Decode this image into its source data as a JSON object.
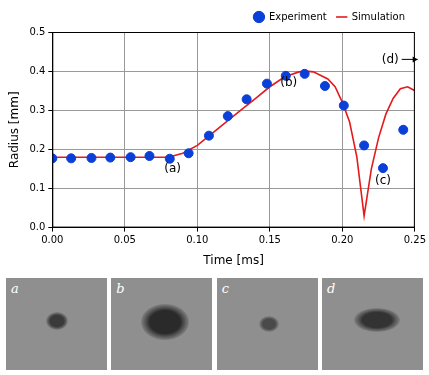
{
  "chart_data": {
    "type": "scatter",
    "x_label": "Time [ms]",
    "y_label": "Radius [mm]",
    "xlim": [
      0,
      0.25
    ],
    "xticks": [
      {
        "value": 0,
        "label": "0.00"
      },
      {
        "value": 0.05,
        "label": "0.05"
      },
      {
        "value": 0.1,
        "label": "0.10"
      },
      {
        "value": 0.15,
        "label": "0.15"
      },
      {
        "value": 0.2,
        "label": "0.20"
      },
      {
        "value": 0.25,
        "label": "0.25"
      }
    ],
    "ylim": [
      0,
      0.5
    ],
    "yticks": [
      {
        "value": 0,
        "label": "0.0"
      },
      {
        "value": 0.1,
        "label": "0.1"
      },
      {
        "value": 0.2,
        "label": "0.2"
      },
      {
        "value": 0.3,
        "label": "0.3"
      },
      {
        "value": 0.4,
        "label": "0.4"
      },
      {
        "value": 0.5,
        "label": "0.5"
      }
    ],
    "grid": true,
    "legend": "upper right",
    "series": [
      {
        "name": "Simulation",
        "type": "line",
        "color": "#e41a1c",
        "line_style": "solid",
        "x": [
          0,
          0.02,
          0.04,
          0.06,
          0.08,
          0.09,
          0.1,
          0.11,
          0.12,
          0.13,
          0.14,
          0.15,
          0.16,
          0.17,
          0.175,
          0.18,
          0.19,
          0.195,
          0.2,
          0.205,
          0.21,
          0.215,
          0.22,
          0.225,
          0.23,
          0.235,
          0.24,
          0.245,
          0.25
        ],
        "values": [
          0.18,
          0.18,
          0.18,
          0.18,
          0.18,
          0.19,
          0.21,
          0.24,
          0.27,
          0.3,
          0.33,
          0.36,
          0.385,
          0.398,
          0.4,
          0.398,
          0.38,
          0.36,
          0.32,
          0.27,
          0.18,
          0.03,
          0.15,
          0.23,
          0.29,
          0.33,
          0.355,
          0.36,
          0.35
        ]
      },
      {
        "name": "Experiment",
        "type": "scatter",
        "color": "#0a3fd8",
        "marker": "circle",
        "x": [
          0,
          0.013,
          0.027,
          0.04,
          0.054,
          0.067,
          0.081,
          0.094,
          0.108,
          0.121,
          0.134,
          0.148,
          0.161,
          0.174,
          0.188,
          0.201,
          0.215,
          0.228,
          0.242
        ],
        "values": [
          0.177,
          0.177,
          0.178,
          0.179,
          0.18,
          0.183,
          0.176,
          0.19,
          0.235,
          0.285,
          0.328,
          0.368,
          0.388,
          0.393,
          0.362,
          0.312,
          0.21,
          0.152,
          0.25
        ]
      }
    ],
    "annotations": [
      {
        "text": "(a)",
        "x": 0.083,
        "y": 0.15
      },
      {
        "text": "(b)",
        "x": 0.163,
        "y": 0.37
      },
      {
        "text": "(c)",
        "x": 0.228,
        "y": 0.12
      },
      {
        "text": "(d)",
        "x": 0.233,
        "y": 0.43
      }
    ]
  },
  "images": [
    {
      "label": "a"
    },
    {
      "label": "b"
    },
    {
      "label": "c"
    },
    {
      "label": "d"
    }
  ]
}
